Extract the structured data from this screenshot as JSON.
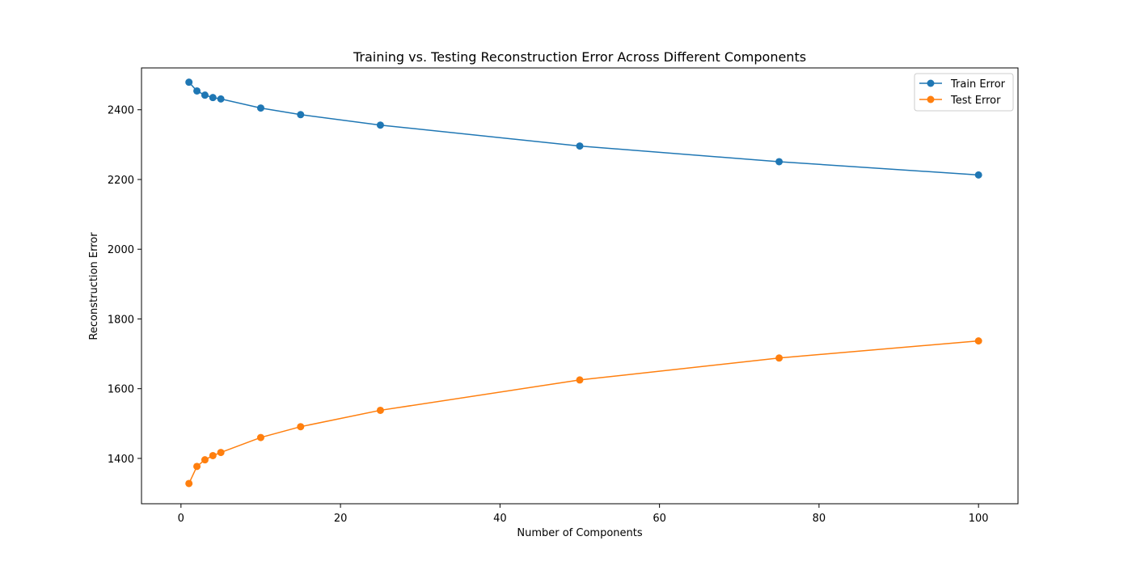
{
  "chart_data": {
    "type": "line",
    "title": "Training vs. Testing Reconstruction Error Across Different Components",
    "xlabel": "Number of Components",
    "ylabel": "Reconstruction Error",
    "xlim": [
      -4.95,
      104.95
    ],
    "ylim": [
      1270,
      2520
    ],
    "xticks": [
      0,
      20,
      40,
      60,
      80,
      100
    ],
    "yticks": [
      1400,
      1600,
      1800,
      2000,
      2200,
      2400
    ],
    "grid": false,
    "legend_position": "top-right",
    "x": [
      1,
      2,
      3,
      4,
      5,
      10,
      15,
      25,
      50,
      75,
      100
    ],
    "series": [
      {
        "name": "Train Error",
        "color": "#1f77b4",
        "marker": "circle",
        "values": [
          2479,
          2454,
          2442,
          2435,
          2431,
          2405,
          2386,
          2356,
          2296,
          2251,
          2213
        ]
      },
      {
        "name": "Test Error",
        "color": "#ff7f0e",
        "marker": "circle",
        "values": [
          1328,
          1377,
          1396,
          1408,
          1417,
          1460,
          1491,
          1538,
          1625,
          1688,
          1737
        ]
      }
    ]
  }
}
